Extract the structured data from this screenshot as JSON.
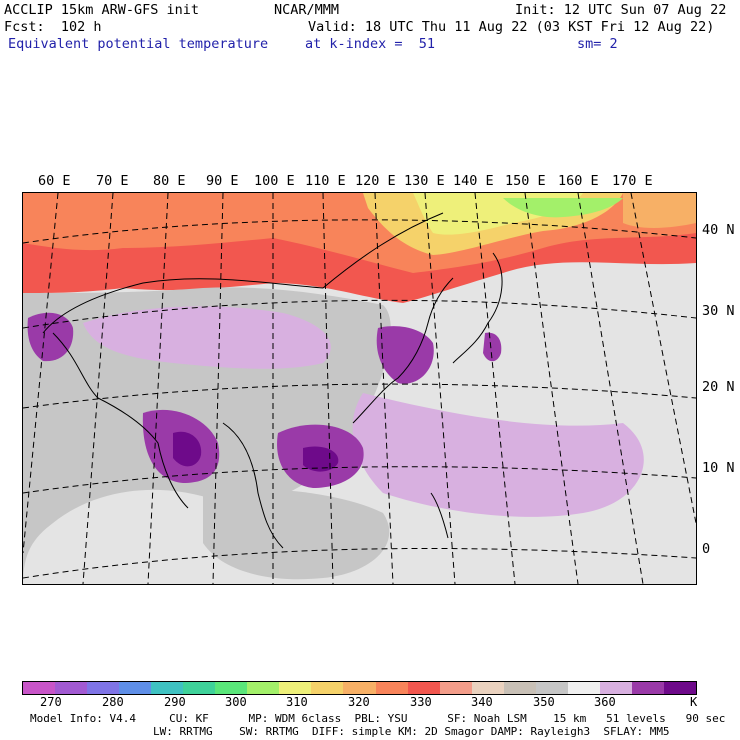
{
  "header": {
    "line1_left": "ACCLIP 15km ARW-GFS init",
    "line1_center": "NCAR/MMM",
    "line1_right": "Init: 12 UTC Sun 07 Aug 22",
    "line2_left": "Fcst:  102 h",
    "line2_right": "Valid: 18 UTC Thu 11 Aug 22 (03 KST Fri 12 Aug 22)",
    "line3_left": "Equivalent potential temperature",
    "line3_center": "at k-index =  51",
    "line3_right": "sm= 2"
  },
  "map": {
    "longitude_labels": [
      "60 E",
      "70 E",
      "80 E",
      "90 E",
      "100 E",
      "110 E",
      "120 E",
      "130 E",
      "140 E",
      "150 E",
      "160 E",
      "170 E"
    ],
    "latitude_labels": [
      "40 N",
      "30 N",
      "20 N",
      "10 N",
      "0"
    ]
  },
  "colorbar": {
    "unit": "K",
    "tick_labels": [
      "270",
      "280",
      "290",
      "300",
      "310",
      "320",
      "330",
      "340",
      "350",
      "360"
    ],
    "colors": [
      "#c855c8",
      "#a25ad2",
      "#7f74e6",
      "#5f8fe8",
      "#3fc2c2",
      "#3fd29a",
      "#5ae67a",
      "#a3f06a",
      "#eef07a",
      "#f5d26a",
      "#f7b066",
      "#f8845a",
      "#f2574f",
      "#f39d8a",
      "#ead2bf",
      "#c8c0b6",
      "#c6c6c6",
      "#f0f0f0",
      "#d8b0e0",
      "#9a3aa8",
      "#6e0a8a"
    ]
  },
  "footer": {
    "line1": "Model Info: V4.4     CU: KF      MP: WDM 6class  PBL: YSU      SF: Noah LSM    15 km   51 levels   90 sec",
    "line2": "LW: RRTMG    SW: RRTMG  DIFF: simple KM: 2D Smagor DAMP: Rayleigh3  SFLAY: MM5"
  }
}
